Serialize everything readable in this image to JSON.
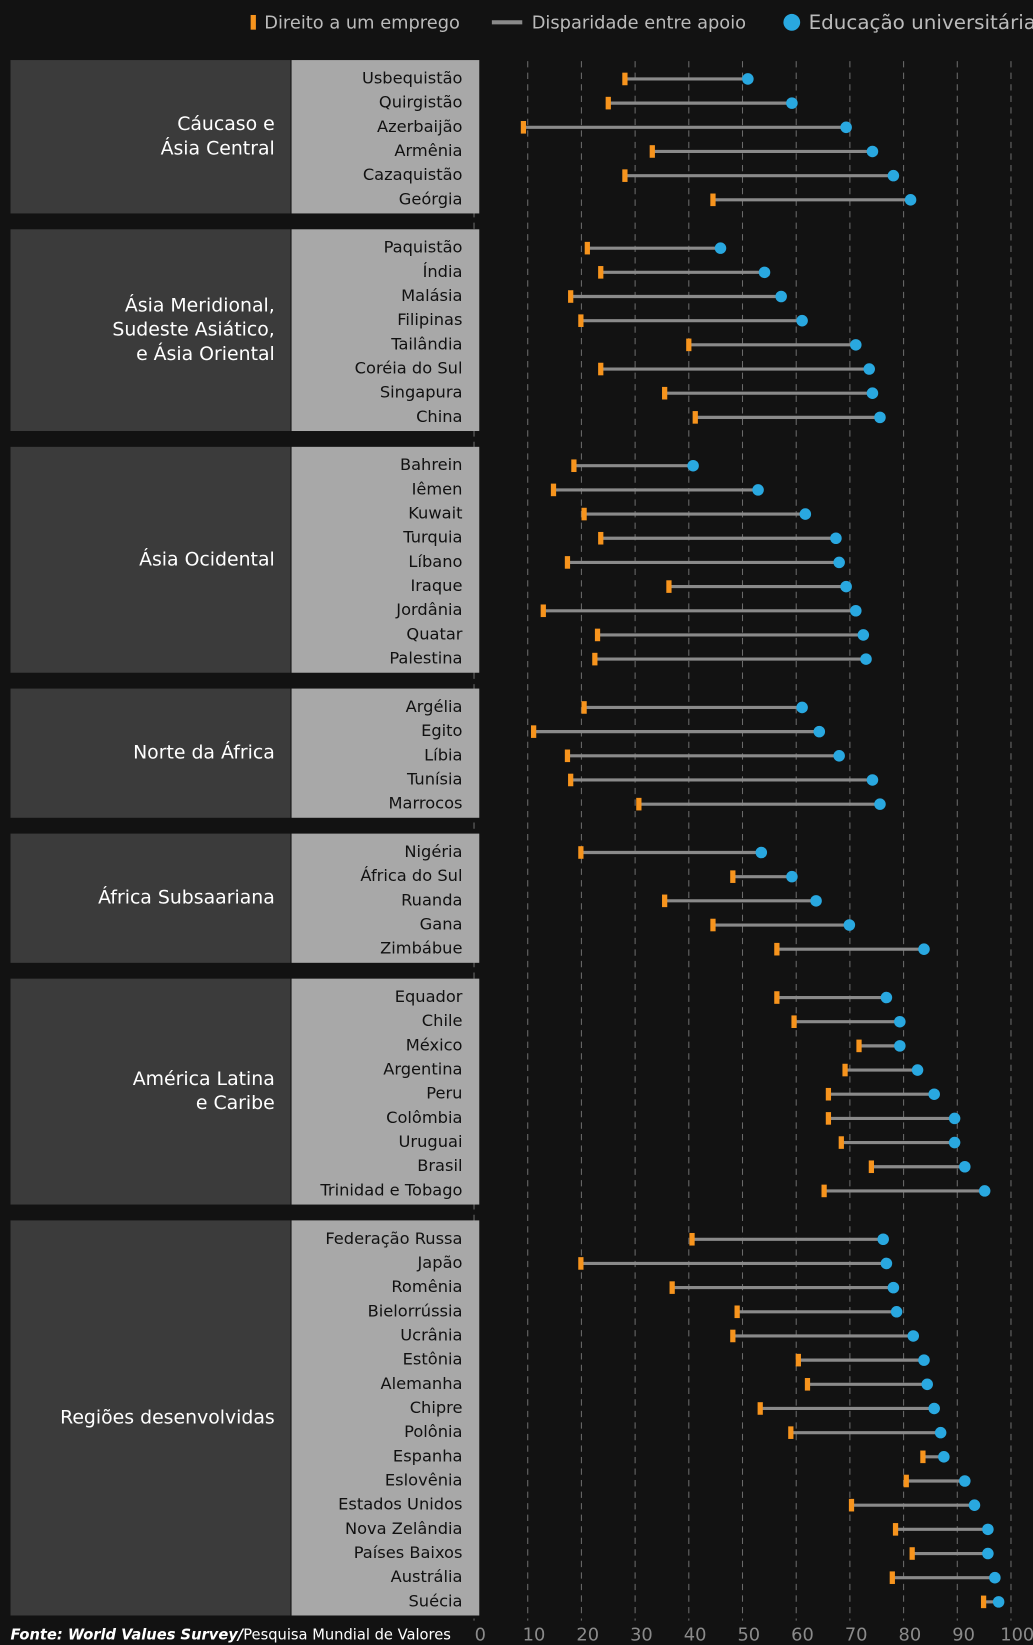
{
  "chart_data": {
    "type": "dumbbell",
    "connector": {
      "name": "Disparidade entre apoio",
      "color": "#8a8a8a"
    },
    "series": [
      {
        "name": "Direito a um emprego",
        "color": "#f7941d",
        "values": [
          28.1,
          25,
          9.2,
          33.2,
          28.1,
          44.5,
          21.1,
          23.6,
          18,
          19.9,
          40,
          23.6,
          35.5,
          41.2,
          18.6,
          14.8,
          20.5,
          23.6,
          17.4,
          36.3,
          12.9,
          23,
          22.5,
          20.5,
          11.1,
          17.4,
          18,
          30.7,
          19.9,
          48.2,
          35.5,
          44.5,
          56.4,
          56.4,
          59.6,
          71.7,
          69.1,
          66,
          66,
          68.4,
          74,
          65.2,
          40.6,
          19.9,
          36.9,
          49,
          48.2,
          60.4,
          62.1,
          53.3,
          59,
          83.6,
          80.5,
          70.3,
          78.5,
          81.6,
          77.9,
          94.9
        ]
      },
      {
        "name": "Educação universitária",
        "color": "#29a8e0",
        "values": [
          51,
          59.2,
          69.3,
          74.2,
          78.1,
          81.3,
          45.9,
          54.1,
          57.2,
          61.1,
          71.1,
          73.6,
          74.2,
          75.6,
          40.8,
          52.9,
          61.7,
          67.4,
          68,
          69.3,
          71.1,
          72.5,
          73,
          61.1,
          64.3,
          68,
          74.2,
          75.6,
          53.5,
          59.2,
          63.7,
          69.9,
          83.8,
          76.8,
          79.3,
          79.3,
          82.6,
          85.7,
          89.5,
          89.5,
          91.4,
          95.1,
          76.2,
          76.8,
          78.1,
          78.7,
          81.8,
          83.8,
          84.4,
          85.7,
          86.9,
          87.5,
          91.4,
          93.2,
          95.7,
          95.7,
          97,
          97.7
        ]
      }
    ],
    "groups": [
      {
        "name": [
          "Cáucaso e",
          "Ásia Central"
        ],
        "categories": [
          "Usbequistão",
          "Quirgistão",
          "Azerbaijão",
          "Armênia",
          "Cazaquistão",
          "Geórgia"
        ]
      },
      {
        "name": [
          "Ásia Meridional,",
          "Sudeste Asiático,",
          "e Ásia Oriental"
        ],
        "categories": [
          "Paquistão",
          "Índia",
          "Malásia",
          "Filipinas",
          "Tailândia",
          "Coréia do Sul",
          "Singapura",
          "China"
        ]
      },
      {
        "name": [
          "Ásia Ocidental"
        ],
        "categories": [
          "Bahrein",
          "Iêmen",
          "Kuwait",
          "Turquia",
          "Líbano",
          "Iraque",
          "Jordânia",
          "Quatar",
          "Palestina"
        ]
      },
      {
        "name": [
          "Norte da África"
        ],
        "categories": [
          "Argélia",
          "Egito",
          "Líbia",
          "Tunísia",
          "Marrocos"
        ]
      },
      {
        "name": [
          "África Subsaariana"
        ],
        "categories": [
          "Nigéria",
          "África do Sul",
          "Ruanda",
          "Gana",
          "Zimbábue"
        ]
      },
      {
        "name": [
          "América Latina",
          "e Caribe"
        ],
        "categories": [
          "Equador",
          "Chile",
          "México",
          "Argentina",
          "Peru",
          "Colômbia",
          "Uruguai",
          "Brasil",
          "Trinidad e Tobago"
        ]
      },
      {
        "name": [
          "Regiões desenvolvidas"
        ],
        "categories": [
          "Federação Russa",
          "Japão",
          "Romênia",
          "Bielorrússia",
          "Ucrânia",
          "Estônia",
          "Alemanha",
          "Chipre",
          "Polônia",
          "Espanha",
          "Eslovênia",
          "Estados Unidos",
          "Nova Zelândia",
          "Países Baixos",
          "Austrália",
          "Suécia"
        ]
      }
    ],
    "xlim": [
      0,
      100
    ],
    "xticks": [
      0,
      10,
      20,
      30,
      40,
      50,
      60,
      70,
      80,
      90,
      100
    ],
    "grid": true,
    "source": [
      "Fonte: World Values Survey/",
      "Pesquisa Mundial de Valores"
    ]
  }
}
